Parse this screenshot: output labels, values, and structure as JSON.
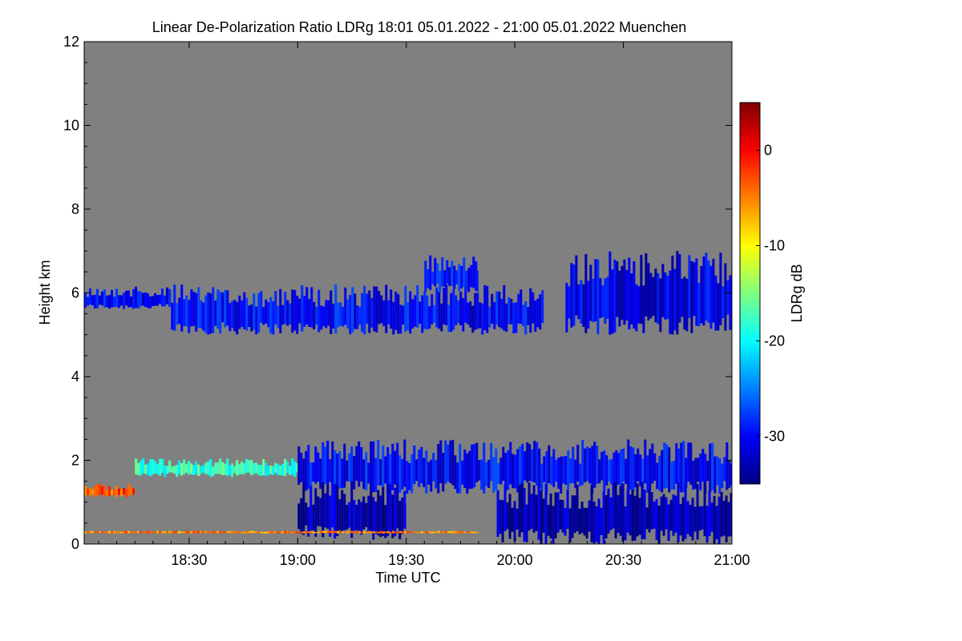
{
  "chart_data": {
    "type": "heatmap",
    "title": "Linear De-Polarization Ratio LDRg   18:01 05.01.2022 - 21:00 05.01.2022 Muenchen",
    "xlabel": "Time UTC",
    "ylabel": "Height km",
    "x_unit": "minutes since 18:00 UTC",
    "xlim": [
      1,
      180
    ],
    "ylim": [
      0,
      12
    ],
    "x_ticks": [
      {
        "value": 30,
        "label": "18:30"
      },
      {
        "value": 60,
        "label": "19:00"
      },
      {
        "value": 90,
        "label": "19:30"
      },
      {
        "value": 120,
        "label": "20:00"
      },
      {
        "value": 150,
        "label": "20:30"
      },
      {
        "value": 180,
        "label": "21:00"
      }
    ],
    "y_ticks": [
      {
        "value": 0,
        "label": "0"
      },
      {
        "value": 2,
        "label": "2"
      },
      {
        "value": 4,
        "label": "4"
      },
      {
        "value": 6,
        "label": "6"
      },
      {
        "value": 8,
        "label": "8"
      },
      {
        "value": 10,
        "label": "10"
      },
      {
        "value": 12,
        "label": "12"
      }
    ],
    "background_color": "#808080",
    "colorbar": {
      "label": "LDRg dB",
      "range": [
        -35,
        5
      ],
      "ticks": [
        {
          "value": 0,
          "label": "0"
        },
        {
          "value": -10,
          "label": "-10"
        },
        {
          "value": -20,
          "label": "-20"
        },
        {
          "value": -30,
          "label": "-30"
        }
      ],
      "colormap": [
        "#00007f",
        "#0000ff",
        "#0080ff",
        "#00ffff",
        "#80ff80",
        "#ffff00",
        "#ff8000",
        "#ff0000",
        "#7f0000"
      ]
    },
    "regions": [
      {
        "name": "upper cloud layer (west)",
        "t0": 1,
        "t1": 25,
        "h0": 5.6,
        "h1": 6.15,
        "ldr_db": -30
      },
      {
        "name": "upper cloud layer",
        "t0": 25,
        "t1": 128,
        "h0": 5.0,
        "h1": 6.2,
        "ldr_db": -30
      },
      {
        "name": "upper cloud tops",
        "t0": 95,
        "t1": 110,
        "h0": 6.0,
        "h1": 6.9,
        "ldr_db": -30
      },
      {
        "name": "upper cloud layer (east)",
        "t0": 134,
        "t1": 180,
        "h0": 5.0,
        "h1": 7.0,
        "ldr_db": -31
      },
      {
        "name": "low cloud layer",
        "t0": 15,
        "t1": 60,
        "h0": 1.6,
        "h1": 2.05,
        "ldr_db": -18
      },
      {
        "name": "low cloud layer",
        "t0": 60,
        "t1": 180,
        "h0": 1.2,
        "h1": 2.5,
        "ldr_db": -30
      },
      {
        "name": "cloud base to ground",
        "t0": 115,
        "t1": 180,
        "h0": 0.0,
        "h1": 1.5,
        "ldr_db": -33
      },
      {
        "name": "fall streaks",
        "t0": 60,
        "t1": 90,
        "h0": 0.1,
        "h1": 1.5,
        "ldr_db": -33
      },
      {
        "name": "aerosol layer near ground",
        "t0": 1,
        "t1": 110,
        "h0": 0.25,
        "h1": 0.32,
        "ldr_db": -5
      },
      {
        "name": "isolated signal",
        "t0": 1,
        "t1": 15,
        "h0": 1.1,
        "h1": 1.45,
        "ldr_db": -3
      }
    ]
  }
}
